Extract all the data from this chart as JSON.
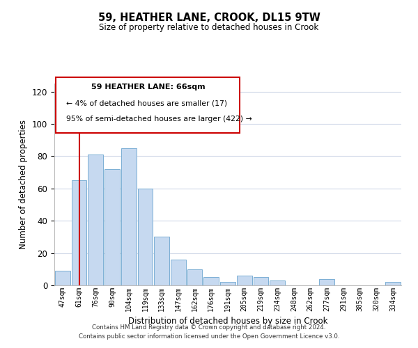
{
  "title": "59, HEATHER LANE, CROOK, DL15 9TW",
  "subtitle": "Size of property relative to detached houses in Crook",
  "xlabel": "Distribution of detached houses by size in Crook",
  "ylabel": "Number of detached properties",
  "bar_labels": [
    "47sqm",
    "61sqm",
    "76sqm",
    "90sqm",
    "104sqm",
    "119sqm",
    "133sqm",
    "147sqm",
    "162sqm",
    "176sqm",
    "191sqm",
    "205sqm",
    "219sqm",
    "234sqm",
    "248sqm",
    "262sqm",
    "277sqm",
    "291sqm",
    "305sqm",
    "320sqm",
    "334sqm"
  ],
  "bar_values": [
    9,
    65,
    81,
    72,
    85,
    60,
    30,
    16,
    10,
    5,
    2,
    6,
    5,
    3,
    0,
    0,
    4,
    0,
    0,
    0,
    2
  ],
  "bar_color": "#c6d9f0",
  "bar_edge_color": "#7bafd4",
  "vline_x": 1,
  "vline_color": "#cc0000",
  "ylim": [
    0,
    125
  ],
  "yticks": [
    0,
    20,
    40,
    60,
    80,
    100,
    120
  ],
  "annotation_title": "59 HEATHER LANE: 66sqm",
  "annotation_line1": "← 4% of detached houses are smaller (17)",
  "annotation_line2": "95% of semi-detached houses are larger (422) →",
  "annotation_box_color": "#ffffff",
  "annotation_box_edge_color": "#cc0000",
  "footer_line1": "Contains HM Land Registry data © Crown copyright and database right 2024.",
  "footer_line2": "Contains public sector information licensed under the Open Government Licence v3.0.",
  "background_color": "#ffffff",
  "grid_color": "#d0d8e8"
}
